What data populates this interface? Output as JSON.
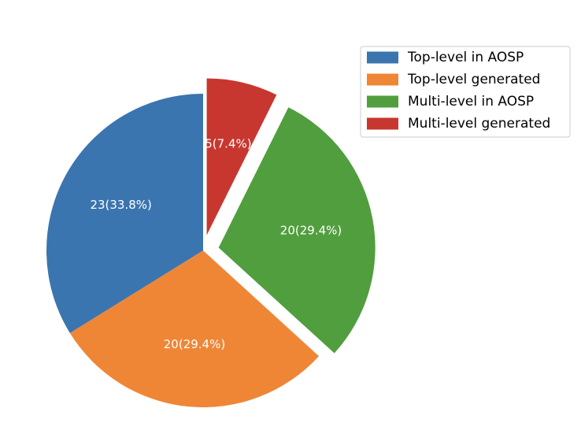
{
  "chart_data": {
    "type": "pie",
    "start_angle_deg": 90,
    "direction": "clockwise",
    "slices": [
      {
        "label": "Multi-level generated",
        "value": 5,
        "percent": 7.4,
        "display": "5(7.4%)",
        "color": "#c8372f",
        "exploded": true
      },
      {
        "label": "Multi-level in AOSP",
        "value": 20,
        "percent": 29.4,
        "display": "20(29.4%)",
        "color": "#519e3e",
        "exploded": true
      },
      {
        "label": "Top-level generated",
        "value": 20,
        "percent": 29.4,
        "display": "20(29.4%)",
        "color": "#ef8636",
        "exploded": false
      },
      {
        "label": "Top-level in AOSP",
        "value": 23,
        "percent": 33.8,
        "display": "23(33.8%)",
        "color": "#3b75af",
        "exploded": false
      }
    ],
    "legend": {
      "placement": "top-right",
      "entries": [
        {
          "label": "Top-level in AOSP",
          "color": "#3b75af"
        },
        {
          "label": "Top-level generated",
          "color": "#ef8636"
        },
        {
          "label": "Multi-level in AOSP",
          "color": "#519e3e"
        },
        {
          "label": "Multi-level generated",
          "color": "#c8372f"
        }
      ]
    }
  }
}
